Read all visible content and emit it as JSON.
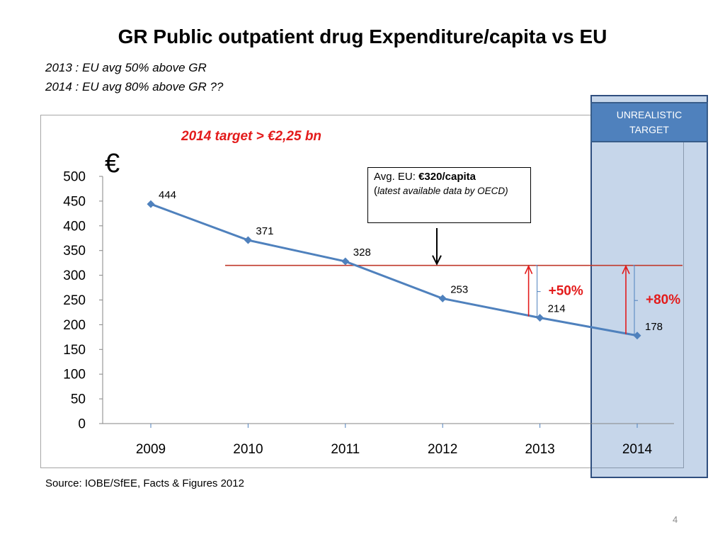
{
  "slide": {
    "title": "GR Public outpatient drug Expenditure/capita vs EU",
    "subtitle_lines": [
      "2013 : EU avg 50% above GR",
      "2014 : EU avg 80% above GR ??"
    ],
    "source": "Source: IOBE/SfEE, Facts & Figures 2012",
    "page_number": "4",
    "target_note": "2014 target > €2,25 bn",
    "highlight_label": "UNREALISTIC\nTARGET",
    "callout": {
      "prefix": "Avg. EU: ",
      "value": "€320/capita",
      "paren_open": "(",
      "detail": "latest available data by OECD)"
    }
  },
  "chart_data": {
    "type": "line",
    "title": "",
    "ylabel": "€",
    "xlabel": "",
    "categories": [
      "2009",
      "2010",
      "2011",
      "2012",
      "2013",
      "2014"
    ],
    "series": [
      {
        "values": [
          444,
          371,
          328,
          253,
          214,
          178
        ]
      }
    ],
    "data_labels": [
      "444",
      "371",
      "328",
      "253",
      "214",
      "178"
    ],
    "ylim": [
      0,
      500
    ],
    "y_ticks": [
      0,
      50,
      100,
      150,
      200,
      250,
      300,
      350,
      400,
      450,
      500
    ],
    "reference_line": {
      "value": 320,
      "label": "Avg. EU: €320/capita"
    },
    "annotations": [
      {
        "category": "2013",
        "text": "+50%"
      },
      {
        "category": "2014",
        "text": "+80%"
      }
    ],
    "grid": false,
    "legend": "none",
    "colors": {
      "series": "#4f81bd",
      "reference": "#c0392b",
      "annotation": "#e31b1b",
      "highlight": "#4f81bd"
    }
  }
}
